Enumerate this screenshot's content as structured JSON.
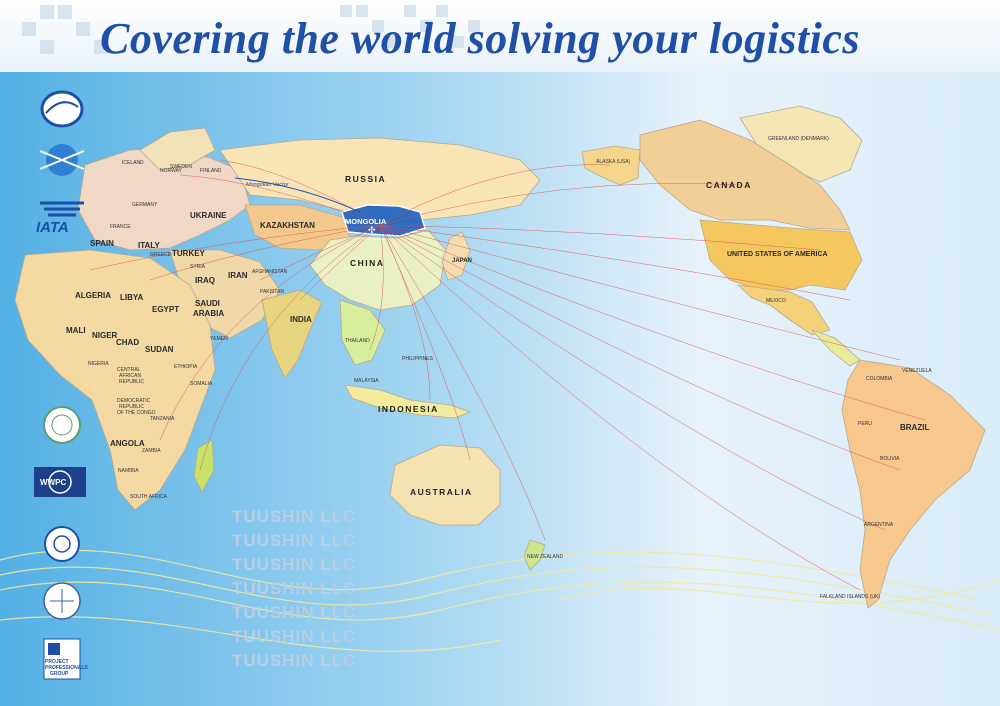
{
  "headline": "Covering the world  solving your logistics",
  "watermark": "TUUSHIN LLC",
  "route_label": "Mongolian Vector",
  "badge": {
    "title": "MONGOLIA",
    "subtitle": "TUUSHIN"
  },
  "logos": {
    "iata": "IATA",
    "wwpc": "WWPC",
    "ppg_1": "PROJECT",
    "ppg_2": "PROFESSIONALS",
    "ppg_3": "GROUP"
  },
  "labels": {
    "russia": "RUSSIA",
    "kazakhstan": "KAZAKHSTAN",
    "china": "CHINA",
    "japan": "JAPAN",
    "india": "INDIA",
    "iran": "IRAN",
    "iraq": "IRAQ",
    "turkey": "TURKEY",
    "saudi_1": "SAUDI",
    "saudi_2": "ARABIA",
    "ukraine": "UKRAINE",
    "spain": "SPAIN",
    "italy": "ITALY",
    "france": "FRANCE",
    "germany": "GERMANY",
    "sweden": "SWEDEN",
    "finland": "FINLAND",
    "norway": "NORWAY",
    "iceland": "ICELAND",
    "greece": "GREECE",
    "syria": "SYRIA",
    "afghanistan": "AFGHANISTAN",
    "pakistan": "PAKISTAN",
    "thailand": "THAILAND",
    "philippines": "PHILIPPINES",
    "malaysia": "MALAYSIA",
    "yemen": "YEMEN",
    "indonesia": "INDONESIA",
    "australia": "AUSTRALIA",
    "new_zealand": "NEW ZEALAND",
    "algeria": "ALGERIA",
    "libya": "LIBYA",
    "egypt": "EGYPT",
    "mali": "MALI",
    "niger": "NIGER",
    "chad": "CHAD",
    "sudan": "SUDAN",
    "ethiopia": "ETHIOPIA",
    "nigeria": "NIGERIA",
    "car_1": "CENTRAL",
    "car_2": "AFRICAN",
    "car_3": "REPUBLIC",
    "somalia": "SOMALIA",
    "drc_1": "DEMOCRATIC",
    "drc_2": "REPUBLIC",
    "drc_3": "OF THE CONGO",
    "tanzania": "TANZANIA",
    "angola": "ANGOLA",
    "zambia": "ZAMBIA",
    "namibia": "NAMIBIA",
    "south_africa": "SOUTH AFRICA",
    "canada": "CANADA",
    "alaska": "ALASKA (USA)",
    "greenland": "GREENLAND (DENMARK)",
    "usa": "UNITED STATES OF AMERICA",
    "mexico": "MEXICO",
    "venezuela": "VENEZUELA",
    "colombia": "COLOMBIA",
    "peru": "PERU",
    "brazil": "BRAZIL",
    "bolivia": "BOLIVIA",
    "argentina": "ARGENTINA",
    "falkland": "FALKLAND ISLANDS (UK)"
  }
}
